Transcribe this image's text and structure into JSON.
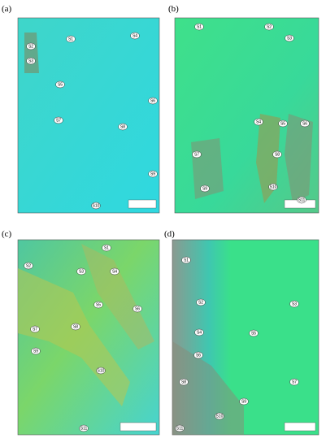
{
  "panels": [
    {
      "label": "(a)",
      "points": [
        "S1",
        "S2",
        "S3",
        "S4",
        "S5",
        "S6",
        "S7",
        "S8",
        "S9",
        "S10"
      ]
    },
    {
      "label": "(b)",
      "points": [
        "S1",
        "S2",
        "S3",
        "S4",
        "S5",
        "S6",
        "S7",
        "S8",
        "S9",
        "S10",
        "S11"
      ]
    },
    {
      "label": "(c)",
      "points": [
        "S1",
        "S2",
        "S3",
        "S4",
        "S5",
        "S6",
        "S7",
        "S8",
        "S9",
        "S10",
        "S11"
      ]
    },
    {
      "label": "(d)",
      "points": [
        "S1",
        "S2",
        "S3",
        "S4",
        "S5",
        "S6",
        "S7",
        "S8",
        "S9",
        "S10",
        "S11"
      ]
    }
  ]
}
